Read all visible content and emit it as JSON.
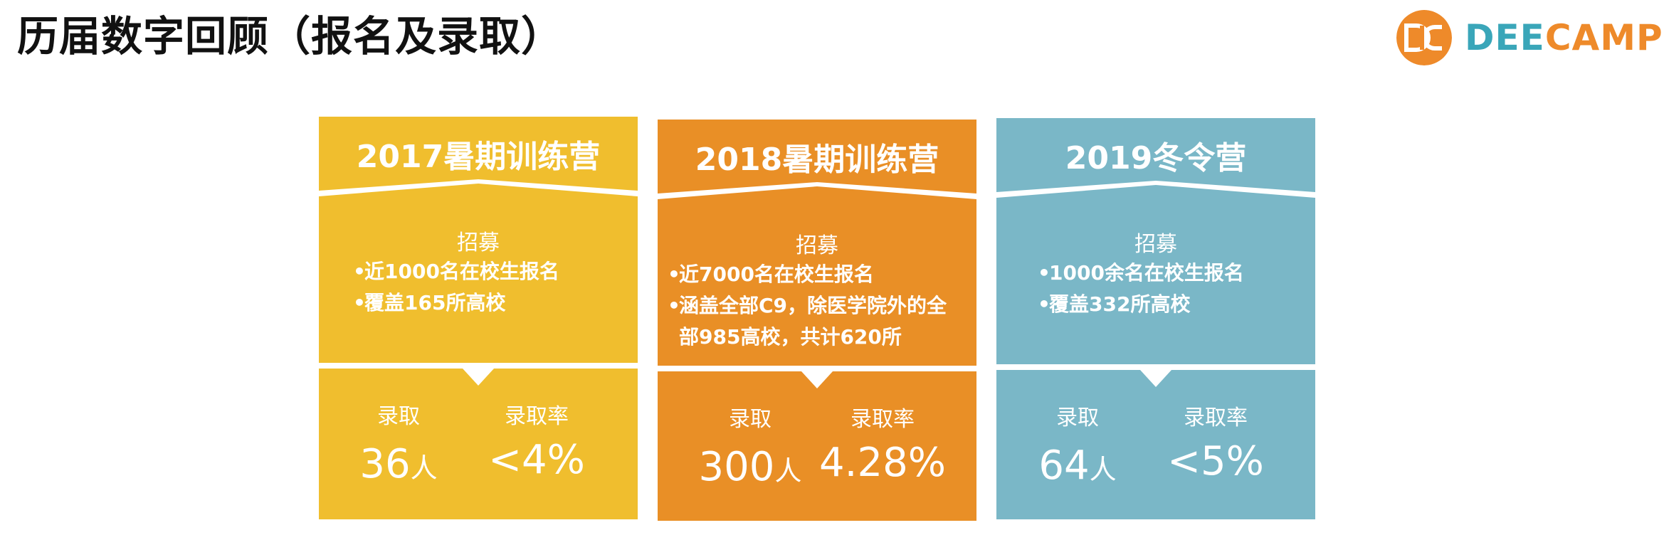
{
  "page": {
    "title": "历届数字回顾（报名及录取）"
  },
  "logo": {
    "text_a": "DEE",
    "text_b": "CAMP",
    "primary_color": "#ee8a2a",
    "secondary_color": "#3aa6b9",
    "icon": "dc-logo-icon"
  },
  "cards": [
    {
      "title": "2017暑期训练营",
      "color": "#f0be2e",
      "recruit_label": "招募",
      "bullets": [
        "近1000名在校生报名",
        "覆盖165所高校"
      ],
      "admit_label": "录取",
      "admit_value": "36",
      "admit_unit": "人",
      "rate_label": "录取率",
      "rate_value": "<4%"
    },
    {
      "title": "2018暑期训练营",
      "color": "#e98f26",
      "recruit_label": "招募",
      "bullets": [
        "近7000名在校生报名",
        "涵盖全部C9，除医学院外的全部985高校，共计620所"
      ],
      "admit_label": "录取",
      "admit_value": "300",
      "admit_unit": "人",
      "rate_label": "录取率",
      "rate_value": "4.28%"
    },
    {
      "title": "2019冬令营",
      "color": "#7ab7c7",
      "recruit_label": "招募",
      "bullets": [
        "1000余名在校生报名",
        "覆盖332所高校"
      ],
      "admit_label": "录取",
      "admit_value": "64",
      "admit_unit": "人",
      "rate_label": "录取率",
      "rate_value": "<5%"
    }
  ]
}
